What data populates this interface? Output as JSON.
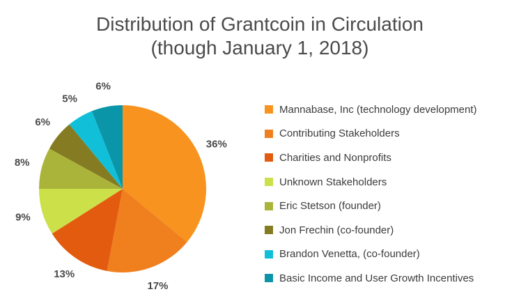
{
  "chart_data": {
    "type": "pie",
    "title": "Distribution of Grantcoin in Circulation",
    "subtitle": "(though January 1, 2018)",
    "legend_position": "right",
    "slices": [
      {
        "label": "Mannabase, Inc (technology development)",
        "value": 36,
        "value_label": "36%",
        "color": "#F7931E"
      },
      {
        "label": "Contributing Stakeholders",
        "value": 17,
        "value_label": "17%",
        "color": "#F07F1E"
      },
      {
        "label": "Charities and Nonprofits",
        "value": 13,
        "value_label": "13%",
        "color": "#E35B0E"
      },
      {
        "label": "Unknown Stakeholders",
        "value": 9,
        "value_label": "9%",
        "color": "#CCE04A"
      },
      {
        "label": "Eric Stetson (founder)",
        "value": 8,
        "value_label": "8%",
        "color": "#ABB43A"
      },
      {
        "label": "Jon Frechin (co-founder)",
        "value": 6,
        "value_label": "6%",
        "color": "#847B22"
      },
      {
        "label": "Brandon Venetta, (co-founder)",
        "value": 5,
        "value_label": "5%",
        "color": "#11BFD8"
      },
      {
        "label": "Basic Income and User Growth Incentives",
        "value": 6,
        "value_label": "6%",
        "color": "#0B95A8"
      }
    ]
  }
}
